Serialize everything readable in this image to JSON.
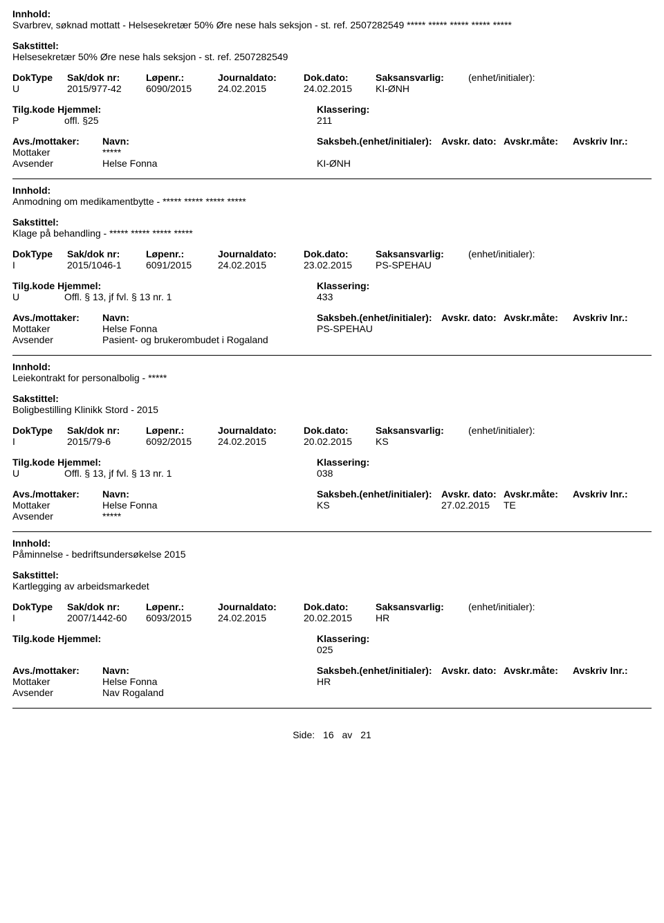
{
  "labels": {
    "innhold": "Innhold:",
    "sakstittel": "Sakstittel:",
    "doktype": "DokType",
    "sakdok": "Sak/dok nr:",
    "lopenr": "Løpenr.:",
    "journaldato": "Journaldato:",
    "dokdato": "Dok.dato:",
    "saksansvarlig": "Saksansvarlig:",
    "enhet": "(enhet/initialer):",
    "tilgkode": "Tilg.kode",
    "hjemmel": "Hjemmel:",
    "klassering": "Klassering:",
    "avsmottaker": "Avs./mottaker:",
    "navn": "Navn:",
    "saksbeh": "Saksbeh.(enhet/initialer):",
    "avskrdato": "Avskr. dato:",
    "avskrmate": "Avskr.måte:",
    "avskrivlnr": "Avskriv lnr.:",
    "mottaker": "Mottaker",
    "avsender": "Avsender",
    "side": "Side:",
    "av": "av"
  },
  "records": [
    {
      "innhold": "Svarbrev, søknad mottatt - Helsesekretær 50% Øre nese hals seksjon - st. ref. 2507282549 ***** ***** ***** ***** *****",
      "sakstittel": "Helsesekretær 50% Øre nese hals seksjon - st. ref. 2507282549",
      "doktype": "U",
      "sakdok": "2015/977-42",
      "lopenr": "6090/2015",
      "journaldato": "24.02.2015",
      "dokdato": "24.02.2015",
      "saksansvarlig": "KI-ØNH",
      "tilgkode": "P",
      "hjemmel": "offl. §25",
      "klassering": "211",
      "parties": [
        {
          "role": "Mottaker",
          "navn": "*****",
          "saksbeh": "",
          "dato": "",
          "mate": ""
        },
        {
          "role": "Avsender",
          "navn": "Helse Fonna",
          "saksbeh": "KI-ØNH",
          "dato": "",
          "mate": ""
        }
      ]
    },
    {
      "innhold": "Anmodning om medikamentbytte - ***** ***** ***** *****",
      "sakstittel": "Klage på behandling - ***** ***** ***** *****",
      "doktype": "I",
      "sakdok": "2015/1046-1",
      "lopenr": "6091/2015",
      "journaldato": "24.02.2015",
      "dokdato": "23.02.2015",
      "saksansvarlig": "PS-SPEHAU",
      "tilgkode": "U",
      "hjemmel": "Offl. § 13, jf fvl. § 13 nr. 1",
      "klassering": "433",
      "parties": [
        {
          "role": "Mottaker",
          "navn": "Helse Fonna",
          "saksbeh": "PS-SPEHAU",
          "dato": "",
          "mate": ""
        },
        {
          "role": "Avsender",
          "navn": "Pasient- og brukerombudet i Rogaland",
          "saksbeh": "",
          "dato": "",
          "mate": ""
        }
      ]
    },
    {
      "innhold": "Leiekontrakt for personalbolig - *****",
      "sakstittel": "Boligbestilling Klinikk Stord - 2015",
      "doktype": "I",
      "sakdok": "2015/79-6",
      "lopenr": "6092/2015",
      "journaldato": "24.02.2015",
      "dokdato": "20.02.2015",
      "saksansvarlig": "KS",
      "tilgkode": "U",
      "hjemmel": "Offl. § 13, jf fvl. § 13 nr. 1",
      "klassering": "038",
      "parties": [
        {
          "role": "Mottaker",
          "navn": "Helse Fonna",
          "saksbeh": "KS",
          "dato": "27.02.2015",
          "mate": "TE"
        },
        {
          "role": "Avsender",
          "navn": "*****",
          "saksbeh": "",
          "dato": "",
          "mate": ""
        }
      ]
    },
    {
      "innhold": "Påminnelse - bedriftsundersøkelse 2015",
      "sakstittel": "Kartlegging av arbeidsmarkedet",
      "doktype": "I",
      "sakdok": "2007/1442-60",
      "lopenr": "6093/2015",
      "journaldato": "24.02.2015",
      "dokdato": "20.02.2015",
      "saksansvarlig": "HR",
      "tilgkode": "",
      "hjemmel": "",
      "klassering": "025",
      "parties": [
        {
          "role": "Mottaker",
          "navn": "Helse Fonna",
          "saksbeh": "HR",
          "dato": "",
          "mate": ""
        },
        {
          "role": "Avsender",
          "navn": "Nav Rogaland",
          "saksbeh": "",
          "dato": "",
          "mate": ""
        }
      ]
    }
  ],
  "footer": {
    "page": "16",
    "total": "21"
  }
}
